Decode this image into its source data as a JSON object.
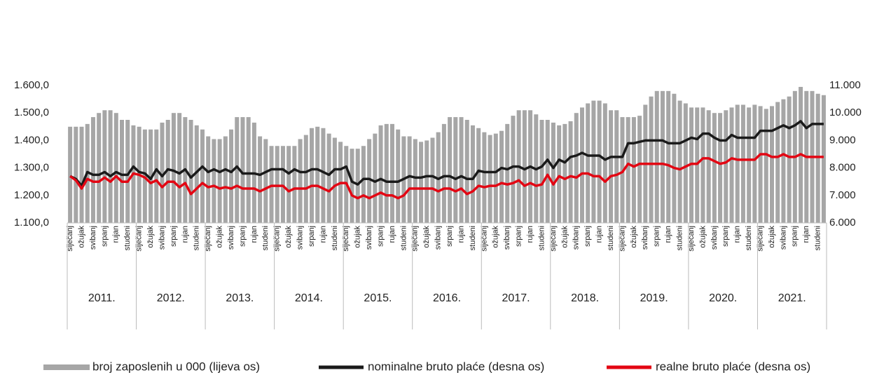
{
  "chart_data": {
    "type": "bar-line",
    "categories": [
      "siječanj",
      null,
      "ožujak",
      null,
      "svibanj",
      null,
      "srpanj",
      null,
      "rujan",
      null,
      "studeni",
      null,
      "siječanj",
      null,
      "ožujak",
      null,
      "svibanj",
      null,
      "srpanj",
      null,
      "rujan",
      null,
      "studeni",
      null,
      "siječanj",
      null,
      "ožujak",
      null,
      "svibanj",
      null,
      "srpanj",
      null,
      "rujan",
      null,
      "studeni",
      null,
      "siječanj",
      null,
      "ožujak",
      null,
      "svibanj",
      null,
      "srpanj",
      null,
      "rujan",
      null,
      "studeni",
      null,
      "siječanj",
      null,
      "ožujak",
      null,
      "svibanj",
      null,
      "srpanj",
      null,
      "rujan",
      null,
      "studeni",
      null,
      "siječanj",
      null,
      "ožujak",
      null,
      "svibanj",
      null,
      "srpanj",
      null,
      "rujan",
      null,
      "studeni",
      null,
      "siječanj",
      null,
      "ožujak",
      null,
      "svibanj",
      null,
      "srpanj",
      null,
      "rujan",
      null,
      "studeni",
      null,
      "siječanj",
      null,
      "ožujak",
      null,
      "svibanj",
      null,
      "srpanj",
      null,
      "rujan",
      null,
      "studeni",
      null,
      "siječanj",
      null,
      "ožujak",
      null,
      "svibanj",
      null,
      "srpanj",
      null,
      "rujan",
      null,
      "studeni",
      null,
      "siječanj",
      null,
      "ožujak",
      null,
      "svibanj",
      null,
      "srpanj",
      null,
      "rujan",
      null,
      "studeni",
      null,
      "siječanj",
      null,
      "ožujak",
      null,
      "svibanj",
      null,
      "srpanj",
      null,
      "rujan",
      null,
      "studeni",
      null
    ],
    "years": [
      "2011.",
      "2012.",
      "2013.",
      "2014.",
      "2015.",
      "2016.",
      "2017.",
      "2018.",
      "2019.",
      "2020.",
      "2021."
    ],
    "series": [
      {
        "name": "broj zaposlenih u 000 (lijeva os)",
        "type": "bar",
        "color": "#a6a6a6",
        "axis": "y",
        "values": [
          1450,
          1450,
          1450,
          1460,
          1485,
          1500,
          1510,
          1510,
          1500,
          1475,
          1475,
          1455,
          1450,
          1440,
          1440,
          1440,
          1465,
          1475,
          1500,
          1500,
          1485,
          1475,
          1455,
          1440,
          1415,
          1405,
          1405,
          1415,
          1440,
          1485,
          1485,
          1485,
          1465,
          1415,
          1405,
          1380,
          1380,
          1380,
          1380,
          1380,
          1405,
          1420,
          1445,
          1450,
          1445,
          1425,
          1410,
          1395,
          1380,
          1370,
          1370,
          1380,
          1405,
          1425,
          1455,
          1460,
          1460,
          1440,
          1415,
          1415,
          1405,
          1395,
          1400,
          1410,
          1430,
          1460,
          1485,
          1485,
          1485,
          1475,
          1455,
          1445,
          1430,
          1420,
          1425,
          1435,
          1460,
          1490,
          1510,
          1510,
          1510,
          1495,
          1475,
          1475,
          1465,
          1455,
          1460,
          1470,
          1500,
          1520,
          1535,
          1545,
          1545,
          1535,
          1510,
          1510,
          1485,
          1485,
          1485,
          1490,
          1530,
          1560,
          1580,
          1580,
          1580,
          1570,
          1545,
          1535,
          1520,
          1520,
          1520,
          1510,
          1500,
          1500,
          1510,
          1520,
          1530,
          1530,
          1520,
          1530,
          1525,
          1515,
          1525,
          1540,
          1550,
          1560,
          1580,
          1595,
          1580,
          1580,
          1570,
          1565
        ]
      },
      {
        "name": "nominalne bruto plaće (desna os)",
        "type": "line",
        "color": "#1a1a1a",
        "axis": "y2",
        "values": [
          7700,
          7600,
          7350,
          7850,
          7750,
          7750,
          7850,
          7700,
          7850,
          7750,
          7750,
          8050,
          7850,
          7800,
          7600,
          7950,
          7700,
          7950,
          7900,
          7800,
          7950,
          7650,
          7850,
          8050,
          7850,
          7950,
          7850,
          7950,
          7850,
          8050,
          7800,
          7800,
          7800,
          7750,
          7850,
          7950,
          7950,
          7950,
          7800,
          7950,
          7850,
          7850,
          7950,
          7950,
          7850,
          7750,
          7950,
          7950,
          8050,
          7500,
          7400,
          7600,
          7600,
          7500,
          7600,
          7500,
          7500,
          7500,
          7600,
          7700,
          7650,
          7650,
          7700,
          7700,
          7600,
          7700,
          7700,
          7600,
          7700,
          7600,
          7600,
          7900,
          7850,
          7850,
          7850,
          8000,
          7950,
          8050,
          8050,
          7950,
          8050,
          7950,
          8050,
          8300,
          8000,
          8300,
          8200,
          8400,
          8450,
          8550,
          8450,
          8450,
          8450,
          8300,
          8400,
          8400,
          8400,
          8900,
          8900,
          8950,
          9000,
          9000,
          9000,
          9000,
          8900,
          8900,
          8900,
          9000,
          9100,
          9050,
          9250,
          9250,
          9100,
          9000,
          9000,
          9200,
          9100,
          9100,
          9100,
          9100,
          9350,
          9350,
          9350,
          9450,
          9550,
          9450,
          9550,
          9700,
          9450,
          9600,
          9600,
          9600
        ]
      },
      {
        "name": "realne bruto plaće (desna os)",
        "type": "line",
        "color": "#e30613",
        "axis": "y2",
        "values": [
          7700,
          7550,
          7250,
          7600,
          7500,
          7500,
          7650,
          7500,
          7700,
          7500,
          7500,
          7800,
          7750,
          7650,
          7450,
          7550,
          7300,
          7500,
          7500,
          7300,
          7450,
          7050,
          7250,
          7450,
          7300,
          7350,
          7250,
          7300,
          7250,
          7350,
          7250,
          7250,
          7250,
          7150,
          7250,
          7350,
          7350,
          7350,
          7150,
          7250,
          7250,
          7250,
          7350,
          7350,
          7250,
          7150,
          7350,
          7450,
          7450,
          7000,
          6900,
          7000,
          6900,
          7000,
          7100,
          7000,
          7000,
          6900,
          7000,
          7250,
          7250,
          7250,
          7250,
          7250,
          7150,
          7250,
          7250,
          7150,
          7250,
          7050,
          7150,
          7350,
          7300,
          7350,
          7350,
          7450,
          7400,
          7450,
          7550,
          7350,
          7450,
          7350,
          7400,
          7750,
          7400,
          7700,
          7600,
          7700,
          7650,
          7800,
          7800,
          7700,
          7700,
          7500,
          7700,
          7750,
          7850,
          8150,
          8050,
          8150,
          8150,
          8150,
          8150,
          8150,
          8100,
          8000,
          7950,
          8050,
          8150,
          8150,
          8350,
          8350,
          8250,
          8150,
          8200,
          8350,
          8300,
          8300,
          8300,
          8300,
          8500,
          8500,
          8400,
          8400,
          8500,
          8400,
          8400,
          8500,
          8400,
          8400,
          8400,
          8400
        ]
      }
    ],
    "ylim": [
      1100,
      1600
    ],
    "yticks": [
      {
        "value": 1100,
        "label": "1.100,0"
      },
      {
        "value": 1200,
        "label": "1.200,0"
      },
      {
        "value": 1300,
        "label": "1.300,0"
      },
      {
        "value": 1400,
        "label": "1.400,0"
      },
      {
        "value": 1500,
        "label": "1.500,0"
      },
      {
        "value": 1600,
        "label": "1.600,0"
      }
    ],
    "y2lim": [
      6000,
      11000
    ],
    "y2ticks": [
      {
        "value": 6000,
        "label": "6.000"
      },
      {
        "value": 7000,
        "label": "7.000"
      },
      {
        "value": 8000,
        "label": "8.000"
      },
      {
        "value": 9000,
        "label": "9.000"
      },
      {
        "value": 10000,
        "label": "10.000"
      },
      {
        "value": 11000,
        "label": "11.000"
      }
    ],
    "legend": "bottom"
  }
}
